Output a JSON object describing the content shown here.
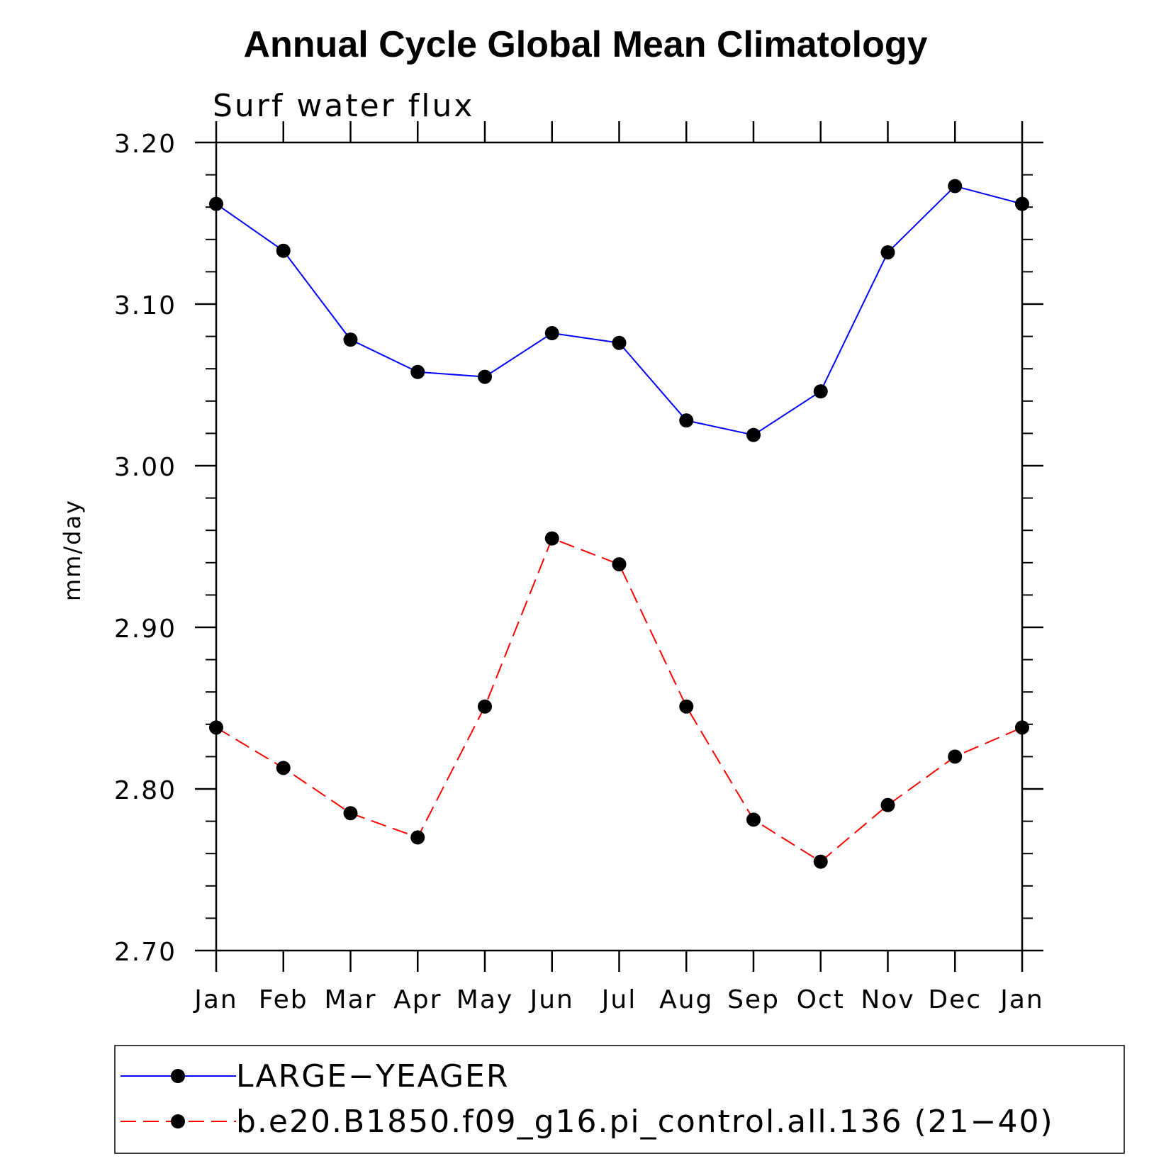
{
  "chart_data": {
    "type": "line",
    "title": "Annual Cycle Global Mean Climatology",
    "subtitle": "Surf water flux",
    "xlabel": "",
    "ylabel": "mm/day",
    "ylim": [
      2.7,
      3.2
    ],
    "yticks": [
      "3.20",
      "3.10",
      "3.00",
      "2.90",
      "2.80",
      "2.70"
    ],
    "ytick_values": [
      3.2,
      3.1,
      3.0,
      2.9,
      2.8,
      2.7
    ],
    "categories": [
      "Jan",
      "Feb",
      "Mar",
      "Apr",
      "May",
      "Jun",
      "Jul",
      "Aug",
      "Sep",
      "Oct",
      "Nov",
      "Dec",
      "Jan"
    ],
    "legend_position": "bottom",
    "series": [
      {
        "name": "LARGE−YEAGER",
        "color": "#0000ff",
        "dash": "solid",
        "marker_color": "#000000",
        "values": [
          3.162,
          3.133,
          3.078,
          3.058,
          3.055,
          3.082,
          3.076,
          3.028,
          3.019,
          3.046,
          3.132,
          3.173,
          3.162
        ]
      },
      {
        "name": "b.e20.B1850.f09_g16.pi_control.all.136 (21−40)",
        "color": "#ff0000",
        "dash": "dashed",
        "marker_color": "#000000",
        "values": [
          2.838,
          2.813,
          2.785,
          2.77,
          2.851,
          2.955,
          2.939,
          2.851,
          2.781,
          2.755,
          2.79,
          2.82,
          2.838
        ]
      }
    ]
  }
}
